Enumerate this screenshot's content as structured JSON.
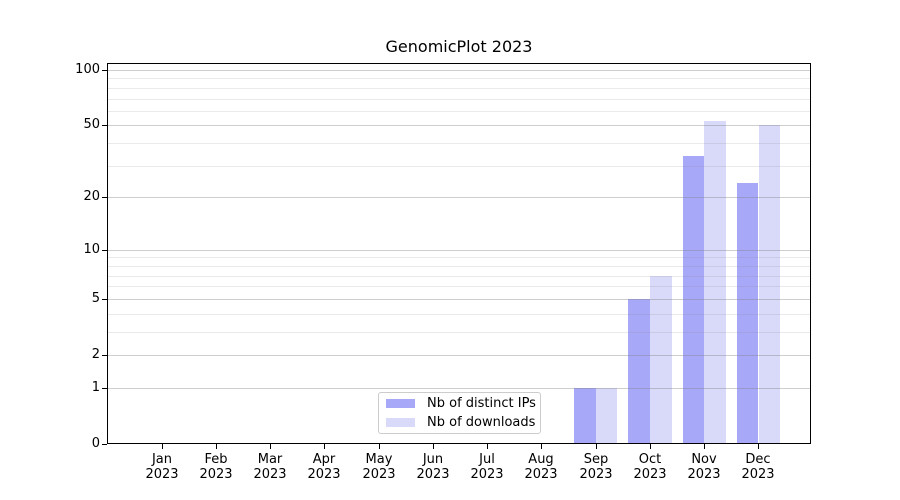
{
  "title": "GenomicPlot 2023",
  "chart_data": {
    "type": "bar",
    "title": "GenomicPlot 2023",
    "categories": [
      "Jan",
      "Feb",
      "Mar",
      "Apr",
      "May",
      "Jun",
      "Jul",
      "Aug",
      "Sep",
      "Oct",
      "Nov",
      "Dec"
    ],
    "x_year_label": "2023",
    "series": [
      {
        "name": "Nb of distinct IPs",
        "color": "#a8a8f8",
        "values": [
          0,
          0,
          0,
          0,
          0,
          0,
          0,
          0,
          1,
          5,
          34,
          24
        ]
      },
      {
        "name": "Nb of downloads",
        "color": "#d9d9fa",
        "values": [
          0,
          0,
          0,
          0,
          0,
          0,
          0,
          0,
          1,
          7,
          53,
          50
        ]
      }
    ],
    "yscale": "log1p",
    "ylim": [
      0,
      100
    ],
    "ytick_values": [
      0,
      1,
      2,
      5,
      10,
      20,
      50,
      100
    ],
    "ytick_labels": [
      "0",
      "1",
      "2",
      "5",
      "10",
      "20",
      "50",
      "100"
    ],
    "minor_gridline_values": [
      3,
      4,
      6,
      7,
      8,
      9,
      30,
      40,
      60,
      70,
      80,
      90
    ],
    "grid": "on",
    "legend_position": "lower center",
    "colors": {
      "bar_distinct_ips": "#a8a8f8",
      "bar_downloads": "#d9d9fa",
      "axis": "#000000",
      "major_grid": "#d7d7d7",
      "minor_grid": "#ebebeb",
      "background": "#ffffff",
      "legend_border": "#cccccc"
    }
  }
}
